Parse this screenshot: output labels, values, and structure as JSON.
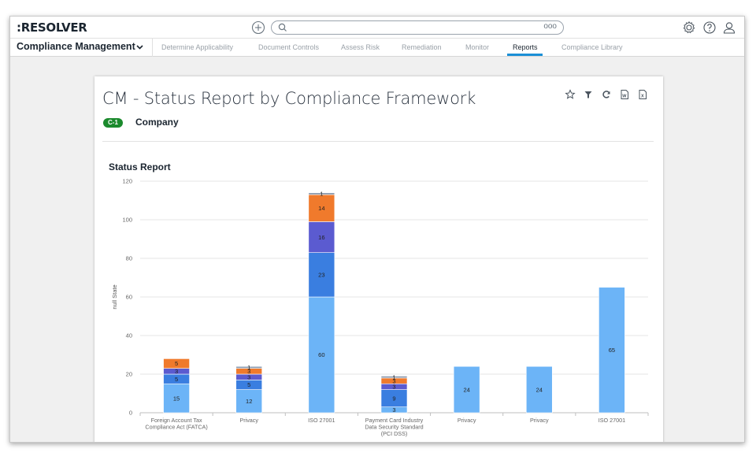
{
  "app": {
    "logo": ":RESOLVER",
    "search": {
      "placeholder": "",
      "more_label": "ooo"
    }
  },
  "header_icons": [
    "add-icon",
    "search-icon",
    "settings-icon",
    "help-icon",
    "user-icon"
  ],
  "navbar": {
    "app_name": "Compliance Management",
    "tabs": [
      {
        "label": "Determine Applicability",
        "active": false
      },
      {
        "label": "Document Controls",
        "active": false
      },
      {
        "label": "Assess Risk",
        "active": false
      },
      {
        "label": "Remediation",
        "active": false
      },
      {
        "label": "Monitor",
        "active": false
      },
      {
        "label": "Reports",
        "active": true
      },
      {
        "label": "Compliance Library",
        "active": false
      }
    ]
  },
  "report": {
    "title": "CM - Status Report by Compliance Framework",
    "badge": "C-1",
    "entity": "Company",
    "tools": [
      "star-icon",
      "filter-icon",
      "refresh-icon",
      "export-word-icon",
      "export-excel-icon"
    ]
  },
  "chart_data": {
    "type": "bar",
    "stacked": true,
    "title": "Status Report",
    "ylabel": "null State",
    "ylim": [
      0,
      120
    ],
    "yticks": [
      0,
      20,
      40,
      60,
      80,
      100,
      120
    ],
    "grid": true,
    "categories": [
      "Foreign Account Tax Compliance Act (FATCA)",
      "Privacy",
      "ISO 27001",
      "Payment Card Industry Data Security Standard (PCI DSS)",
      "Privacy",
      "Privacy",
      "ISO 27001"
    ],
    "series": [
      {
        "color": "#6cb4f7",
        "values": [
          15,
          12,
          60,
          3,
          24,
          24,
          65
        ]
      },
      {
        "color": "#3a7ee0",
        "values": [
          5,
          5,
          23,
          9,
          0,
          0,
          0
        ]
      },
      {
        "color": "#5b5bd0",
        "values": [
          3,
          3,
          16,
          3,
          0,
          0,
          0
        ]
      },
      {
        "color": "#f07a2c",
        "values": [
          5,
          3,
          14,
          3,
          0,
          0,
          0
        ]
      },
      {
        "color": "#8f9db0",
        "values": [
          0,
          1,
          1,
          1,
          0,
          0,
          0
        ]
      }
    ],
    "colors": {
      "accent": "#1b8fd6",
      "badge": "#1b8a2d"
    }
  }
}
